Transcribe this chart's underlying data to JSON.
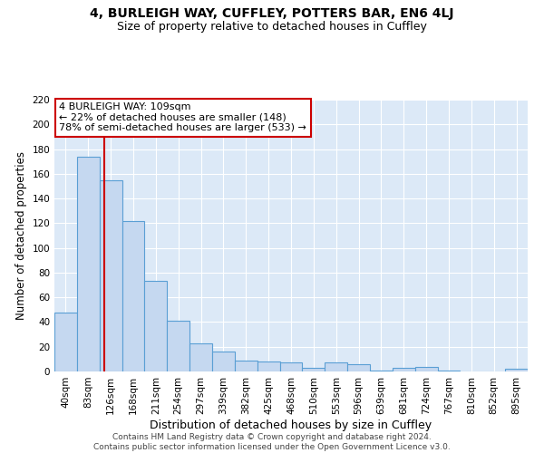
{
  "title": "4, BURLEIGH WAY, CUFFLEY, POTTERS BAR, EN6 4LJ",
  "subtitle": "Size of property relative to detached houses in Cuffley",
  "xlabel": "Distribution of detached houses by size in Cuffley",
  "ylabel": "Number of detached properties",
  "categories": [
    "40sqm",
    "83sqm",
    "126sqm",
    "168sqm",
    "211sqm",
    "254sqm",
    "297sqm",
    "339sqm",
    "382sqm",
    "425sqm",
    "468sqm",
    "510sqm",
    "553sqm",
    "596sqm",
    "639sqm",
    "681sqm",
    "724sqm",
    "767sqm",
    "810sqm",
    "852sqm",
    "895sqm"
  ],
  "values": [
    48,
    174,
    155,
    122,
    73,
    41,
    23,
    16,
    9,
    8,
    7,
    3,
    7,
    6,
    1,
    3,
    4,
    1,
    0,
    0,
    2
  ],
  "bar_color": "#c5d8f0",
  "bar_edge_color": "#5a9fd4",
  "vline_color": "#cc0000",
  "vline_pos": 1.72,
  "annotation_text": "4 BURLEIGH WAY: 109sqm\n← 22% of detached houses are smaller (148)\n78% of semi-detached houses are larger (533) →",
  "annotation_box_color": "#ffffff",
  "annotation_box_edge_color": "#cc0000",
  "ylim": [
    0,
    220
  ],
  "yticks": [
    0,
    20,
    40,
    60,
    80,
    100,
    120,
    140,
    160,
    180,
    200,
    220
  ],
  "background_color": "#dce9f7",
  "footer_line1": "Contains HM Land Registry data © Crown copyright and database right 2024.",
  "footer_line2": "Contains public sector information licensed under the Open Government Licence v3.0.",
  "title_fontsize": 10,
  "subtitle_fontsize": 9,
  "xlabel_fontsize": 9,
  "ylabel_fontsize": 8.5,
  "tick_fontsize": 7.5,
  "footer_fontsize": 6.5,
  "annot_fontsize": 8
}
